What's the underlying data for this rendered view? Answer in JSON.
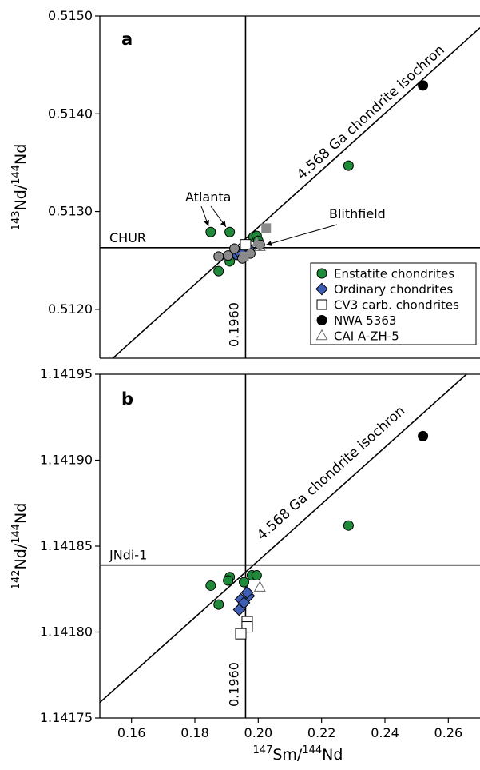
{
  "chart_data": [
    {
      "panel": "a",
      "type": "scatter",
      "xlim": [
        0.15,
        0.27
      ],
      "ylim": [
        0.5115,
        0.515
      ],
      "yticks": [
        "0.5120",
        "0.5130",
        "0.5140",
        "0.5150"
      ],
      "ylabel": {
        "sup1": "143",
        "base1": "Nd/",
        "sup2": "144",
        "base2": "Nd"
      },
      "reference_lines": {
        "vertical": 0.196,
        "vertical_label": "0.1960",
        "horizontal": 0.51263,
        "horizontal_label": "CHUR"
      },
      "isochron": {
        "label": "4.568 Ga chondrite isochron",
        "from": [
          0.15,
          0.51138
        ],
        "to": [
          0.27,
          0.51488
        ]
      },
      "annotations": [
        {
          "text": "Atlanta",
          "targets": [
            [
              0.185,
              0.51279
            ],
            [
              0.191,
              0.51279
            ]
          ]
        },
        {
          "text": "Blithfield",
          "targets": [
            [
              0.2005,
              0.51264
            ]
          ]
        }
      ],
      "legend": {
        "placement": "bottom-right",
        "items": [
          {
            "label": "Enstatite chondrites",
            "marker": "circle",
            "color": "#1e8a3a"
          },
          {
            "label": "Ordinary chondrites",
            "marker": "diamond",
            "color": "#3f5fb5"
          },
          {
            "label": "CV3 carb. chondrites",
            "marker": "square-open",
            "color": "#ffffff"
          },
          {
            "label": "NWA 5363",
            "marker": "circle",
            "color": "#000000"
          },
          {
            "label": "CAI A-ZH-5",
            "marker": "triangle-open",
            "color": "#ffffff"
          }
        ]
      },
      "series": [
        {
          "name": "Enstatite chondrites",
          "marker": "circle",
          "color": "#1e8a3a",
          "points": [
            [
              0.185,
              0.51279
            ],
            [
              0.191,
              0.51279
            ],
            [
              0.1875,
              0.51239
            ],
            [
              0.191,
              0.51249
            ],
            [
              0.1985,
              0.51274
            ],
            [
              0.1995,
              0.51275
            ],
            [
              0.2,
              0.5127
            ],
            [
              0.2285,
              0.51347
            ]
          ]
        },
        {
          "name": "Ordinary chondrites",
          "marker": "diamond",
          "color": "#3f5fb5",
          "points": [
            [
              0.193,
              0.51256
            ],
            [
              0.194,
              0.51258
            ],
            [
              0.1955,
              0.5126
            ],
            [
              0.197,
              0.51262
            ]
          ]
        },
        {
          "name": "CV3 carb. chondrites",
          "marker": "square-open",
          "color": "#ffffff",
          "points": [
            [
              0.196,
              0.51266
            ]
          ]
        },
        {
          "name": "NWA 5363",
          "marker": "circle",
          "color": "#000000",
          "points": [
            [
              0.252,
              0.51429
            ]
          ]
        },
        {
          "name": "CAI A-ZH-5",
          "marker": "triangle-open",
          "color": "#ffffff",
          "points": [
            [
              0.2005,
              0.51264
            ]
          ]
        },
        {
          "marker": "circle",
          "color": "#8a8a8a",
          "points": [
            [
              0.1875,
              0.51254
            ],
            [
              0.1905,
              0.51255
            ],
            [
              0.1925,
              0.51262
            ],
            [
              0.1975,
              0.51257
            ],
            [
              0.2005,
              0.51266
            ],
            [
              0.195,
              0.51252
            ]
          ]
        },
        {
          "marker": "square",
          "color": "#8a8a8a",
          "points": [
            [
              0.2025,
              0.51283
            ],
            [
              0.1955,
              0.51254
            ]
          ]
        },
        {
          "marker": "triangle",
          "color": "#8a8a8a",
          "points": [
            [
              0.1995,
              0.51268
            ]
          ]
        }
      ]
    },
    {
      "panel": "b",
      "type": "scatter",
      "xlim": [
        0.15,
        0.27
      ],
      "ylim": [
        1.14175,
        1.14195
      ],
      "xticks": [
        "0.16",
        "0.18",
        "0.20",
        "0.22",
        "0.24",
        "0.26"
      ],
      "yticks": [
        "1.14175",
        "1.14180",
        "1.14185",
        "1.14190",
        "1.14195"
      ],
      "xlabel": {
        "sup1": "147",
        "base1": "Sm/",
        "sup2": "144",
        "base2": "Nd"
      },
      "ylabel": {
        "sup1": "142",
        "base1": "Nd/",
        "sup2": "144",
        "base2": "Nd"
      },
      "reference_lines": {
        "vertical": 0.196,
        "vertical_label": "0.1960",
        "horizontal": 1.141839,
        "horizontal_label": "JNdi-1"
      },
      "isochron": {
        "label": "4.568 Ga chondrite isochron",
        "from": [
          0.15,
          1.141759
        ],
        "to": [
          0.27,
          1.141957
        ]
      },
      "series": [
        {
          "name": "Enstatite chondrites",
          "marker": "circle",
          "color": "#1e8a3a",
          "points": [
            [
              0.185,
              1.141827,
              1.5e-06
            ],
            [
              0.1875,
              1.141816,
              1.5e-06
            ],
            [
              0.191,
              1.141832,
              1.5e-06
            ],
            [
              0.1905,
              1.14183,
              1.5e-06
            ],
            [
              0.1955,
              1.141829,
              1.5e-06
            ],
            [
              0.198,
              1.141833,
              1.5e-06
            ],
            [
              0.1995,
              1.141833,
              1.5e-06
            ],
            [
              0.2285,
              1.141862,
              1.5e-06
            ]
          ]
        },
        {
          "name": "NWA 5363",
          "marker": "circle",
          "color": "#000000",
          "points": [
            [
              0.252,
              1.141914,
              1.5e-06
            ]
          ]
        },
        {
          "name": "CV3 carb. chondrites",
          "marker": "square-open",
          "color": "#ffffff",
          "points": [
            [
              0.1965,
              1.141806,
              1e-06
            ],
            [
              0.1965,
              1.141803,
              1e-06
            ],
            [
              0.1945,
              1.141799,
              1e-06
            ]
          ]
        },
        {
          "name": "Ordinary chondrites",
          "marker": "diamond",
          "color": "#3f5fb5",
          "points": [
            [
              0.194,
              1.141813,
              1.5e-06
            ],
            [
              0.1945,
              1.141819,
              1.5e-06
            ],
            [
              0.1955,
              1.141817,
              1.5e-06
            ],
            [
              0.197,
              1.141821,
              1.5e-06
            ],
            [
              0.1965,
              1.141823,
              1.5e-06
            ]
          ]
        },
        {
          "name": "CAI A-ZH-5",
          "marker": "triangle-open",
          "color": "#ffffff",
          "points": [
            [
              0.2005,
              1.141826,
              2e-06
            ]
          ]
        }
      ]
    }
  ]
}
